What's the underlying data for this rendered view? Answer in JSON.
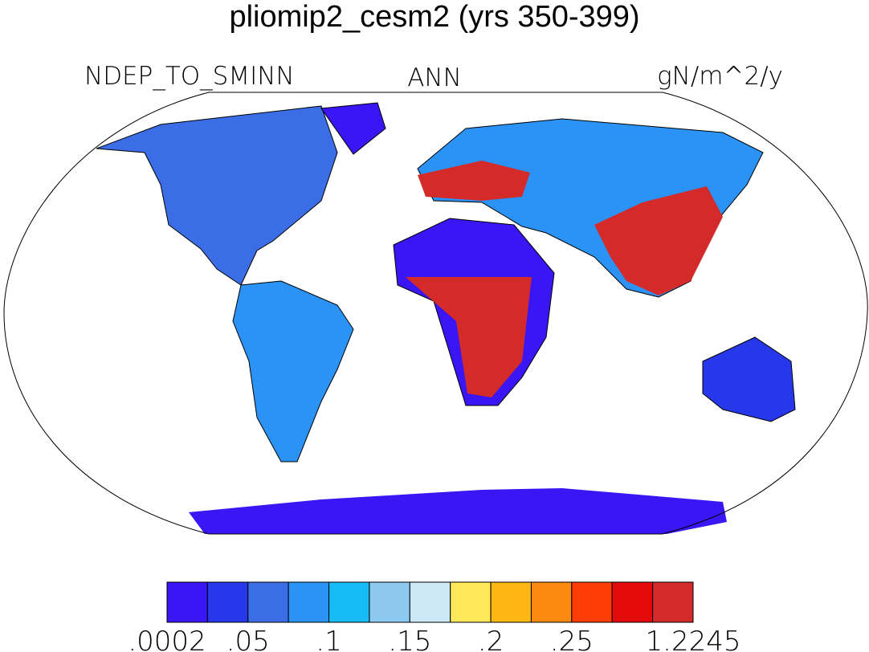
{
  "title": "pliomip2_cesm2 (yrs 350-399)",
  "left_string": "NDEP_TO_SMINN",
  "center_string": "ANN",
  "right_string": "gN/m^2/y",
  "colorbar": {
    "colors": [
      "#3b16f5",
      "#2638ea",
      "#3b6ee6",
      "#2b93f5",
      "#17bcf7",
      "#8cc8ef",
      "#cce8f7",
      "#fde85a",
      "#fdb714",
      "#fd8a10",
      "#fd3c06",
      "#e50a0a",
      "#d42a2a"
    ],
    "labels": [
      ".0002",
      ".05",
      ".1",
      ".15",
      ".2",
      ".25",
      "1.2245"
    ]
  }
}
